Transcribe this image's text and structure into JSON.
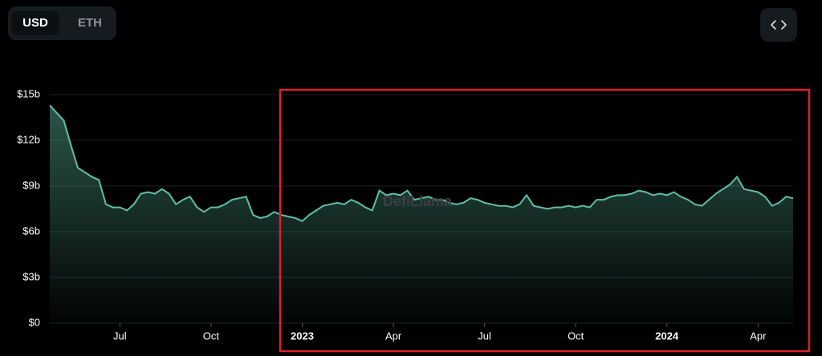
{
  "toggle": [
    "USD",
    "ETH"
  ],
  "watermark": "DefiLlama",
  "chart_data": {
    "type": "area",
    "categories": [
      null,
      null,
      null,
      null,
      null,
      null,
      null,
      null,
      null,
      null,
      "Jul",
      null,
      null,
      null,
      null,
      null,
      null,
      null,
      null,
      null,
      null,
      null,
      null,
      "Oct",
      null,
      null,
      null,
      null,
      null,
      null,
      null,
      null,
      null,
      null,
      null,
      null,
      "2023",
      null,
      null,
      null,
      null,
      null,
      null,
      null,
      null,
      null,
      null,
      null,
      null,
      "Apr",
      null,
      null,
      null,
      null,
      null,
      null,
      null,
      null,
      null,
      null,
      null,
      null,
      "Jul",
      null,
      null,
      null,
      null,
      null,
      null,
      null,
      null,
      null,
      null,
      null,
      null,
      "Oct",
      null,
      null,
      null,
      null,
      null,
      null,
      null,
      null,
      null,
      null,
      null,
      null,
      "2024",
      null,
      null,
      null,
      null,
      null,
      null,
      null,
      null,
      null,
      null,
      null,
      null,
      "Apr",
      null,
      null,
      null,
      null,
      null
    ],
    "values": [
      14.3,
      13.8,
      13.3,
      11.7,
      10.2,
      9.9,
      9.6,
      9.4,
      7.8,
      7.6,
      7.6,
      7.4,
      7.8,
      8.5,
      8.6,
      8.5,
      8.8,
      8.5,
      7.8,
      8.1,
      8.3,
      7.6,
      7.3,
      7.6,
      7.6,
      7.8,
      8.1,
      8.2,
      8.3,
      7.1,
      6.9,
      7.0,
      7.3,
      7.1,
      7.0,
      6.9,
      6.7,
      7.1,
      7.4,
      7.7,
      7.8,
      7.9,
      7.8,
      8.1,
      7.9,
      7.6,
      7.4,
      8.7,
      8.4,
      8.5,
      8.4,
      8.7,
      8.1,
      8.2,
      8.3,
      8.1,
      8.1,
      7.9,
      7.8,
      7.9,
      8.2,
      8.1,
      7.9,
      7.8,
      7.7,
      7.7,
      7.6,
      7.8,
      8.4,
      7.7,
      7.6,
      7.5,
      7.6,
      7.6,
      7.7,
      7.6,
      7.7,
      7.6,
      8.1,
      8.1,
      8.3,
      8.4,
      8.4,
      8.5,
      8.7,
      8.6,
      8.4,
      8.5,
      8.4,
      8.6,
      8.3,
      8.1,
      7.8,
      7.7,
      8.1,
      8.5,
      8.8,
      9.1,
      9.6,
      8.8,
      8.7,
      8.6,
      8.3,
      7.7,
      7.9,
      8.3,
      8.2
    ],
    "color": "#5fbfa6",
    "ylim": [
      0,
      15
    ],
    "yticks": [
      {
        "value": 0,
        "label": "$0"
      },
      {
        "value": 3,
        "label": "$3b"
      },
      {
        "value": 6,
        "label": "$6b"
      },
      {
        "value": 9,
        "label": "$9b"
      },
      {
        "value": 12,
        "label": "$12b"
      },
      {
        "value": 15,
        "label": "$15b"
      }
    ],
    "grid": true
  }
}
